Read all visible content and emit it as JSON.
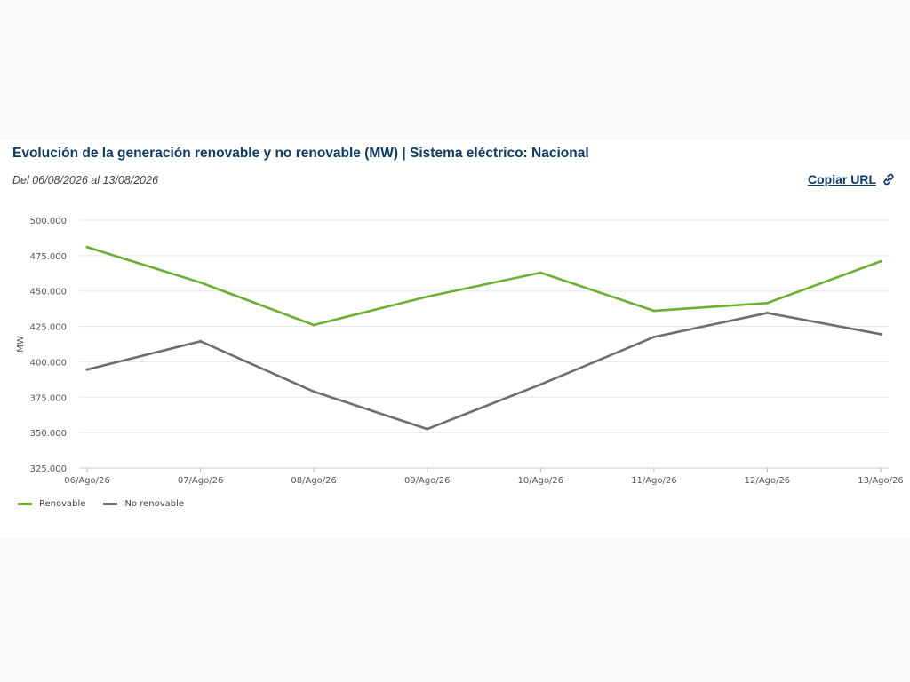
{
  "header": {
    "title": "Evolución de la generación renovable y no renovable (MW) | Sistema eléctrico: Nacional",
    "subtitle": "Del 06/08/2026 al 13/08/2026",
    "copy_url_label": "Copiar URL",
    "copy_url_icon": "link-icon"
  },
  "colors": {
    "title": "#0b3b68",
    "renovable": "#6cb033",
    "no_renovable": "#6e6e6e"
  },
  "chart_data": {
    "type": "line",
    "categories": [
      "06/Ago/26",
      "07/Ago/26",
      "08/Ago/26",
      "09/Ago/26",
      "10/Ago/26",
      "11/Ago/26",
      "12/Ago/26",
      "13/Ago/26"
    ],
    "series": [
      {
        "name": "Renovable",
        "color": "#6cb033",
        "values": [
          481000,
          456000,
          426000,
          446000,
          463000,
          436000,
          441500,
          471000
        ]
      },
      {
        "name": "No renovable",
        "color": "#6e6e6e",
        "values": [
          394500,
          414500,
          379000,
          352500,
          384000,
          417500,
          434500,
          419500
        ]
      }
    ],
    "ylabel": "MW",
    "ylim": [
      325000,
      500000
    ],
    "yticks": [
      "325.000",
      "350.000",
      "375.000",
      "400.000",
      "425.000",
      "450.000",
      "475.000",
      "500.000"
    ],
    "grid": true,
    "legend_position": "bottom-left"
  }
}
